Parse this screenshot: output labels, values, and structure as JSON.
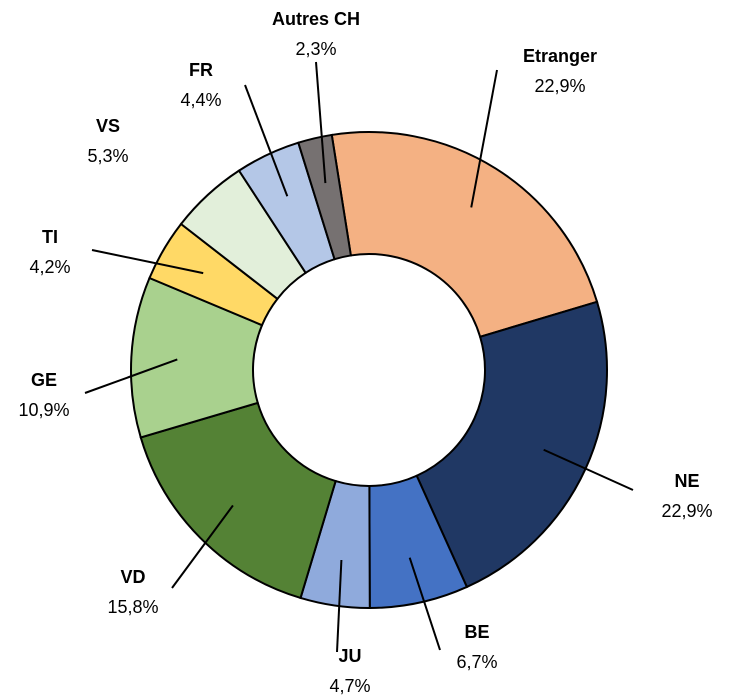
{
  "chart_data": {
    "type": "donut",
    "categories": [
      "Etranger",
      "NE",
      "BE",
      "JU",
      "VD",
      "GE",
      "TI",
      "VS",
      "FR",
      "Autres CH"
    ],
    "values": [
      22.9,
      22.9,
      6.7,
      4.7,
      15.8,
      10.9,
      4.2,
      5.3,
      4.4,
      2.3
    ],
    "value_labels": [
      "22,9%",
      "22,9%",
      "6,7%",
      "4,7%",
      "15,8%",
      "10,9%",
      "4,2%",
      "5,3%",
      "4,4%",
      "2,3%"
    ],
    "colors": [
      "#f4b183",
      "#203864",
      "#4472c4",
      "#8faadc",
      "#548235",
      "#a9d18e",
      "#ffd966",
      "#e2efda",
      "#b4c7e7",
      "#767171"
    ]
  }
}
